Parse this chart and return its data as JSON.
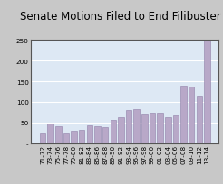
{
  "title": "Senate Motions Filed to End Filibuster",
  "categories": [
    "71-72",
    "73-74",
    "75-76",
    "77-78",
    "79-80",
    "81-82",
    "83-84",
    "85-86",
    "87-88",
    "89-90",
    "91-92",
    "93-94",
    "95-96",
    "97-98",
    "99-00",
    "01-02",
    "03-04",
    "05-06",
    "07-08",
    "09-10",
    "11-12",
    "13-14"
  ],
  "values": [
    23,
    48,
    42,
    23,
    30,
    32,
    43,
    42,
    38,
    57,
    62,
    80,
    82,
    71,
    73,
    73,
    62,
    68,
    139,
    137,
    115,
    250
  ],
  "bar_color": "#b8a8c8",
  "bar_edge_color": "#9080a8",
  "ylim": [
    0,
    250
  ],
  "yticks": [
    0,
    50,
    100,
    150,
    200,
    250
  ],
  "ytick_labels": [
    "-",
    "50",
    "100",
    "150",
    "200",
    "250"
  ],
  "plot_bg_color": "#dde8f4",
  "outer_bg": "#c8c8c8",
  "title_fontsize": 8.5,
  "tick_fontsize": 5.2,
  "grid_color": "#ffffff"
}
